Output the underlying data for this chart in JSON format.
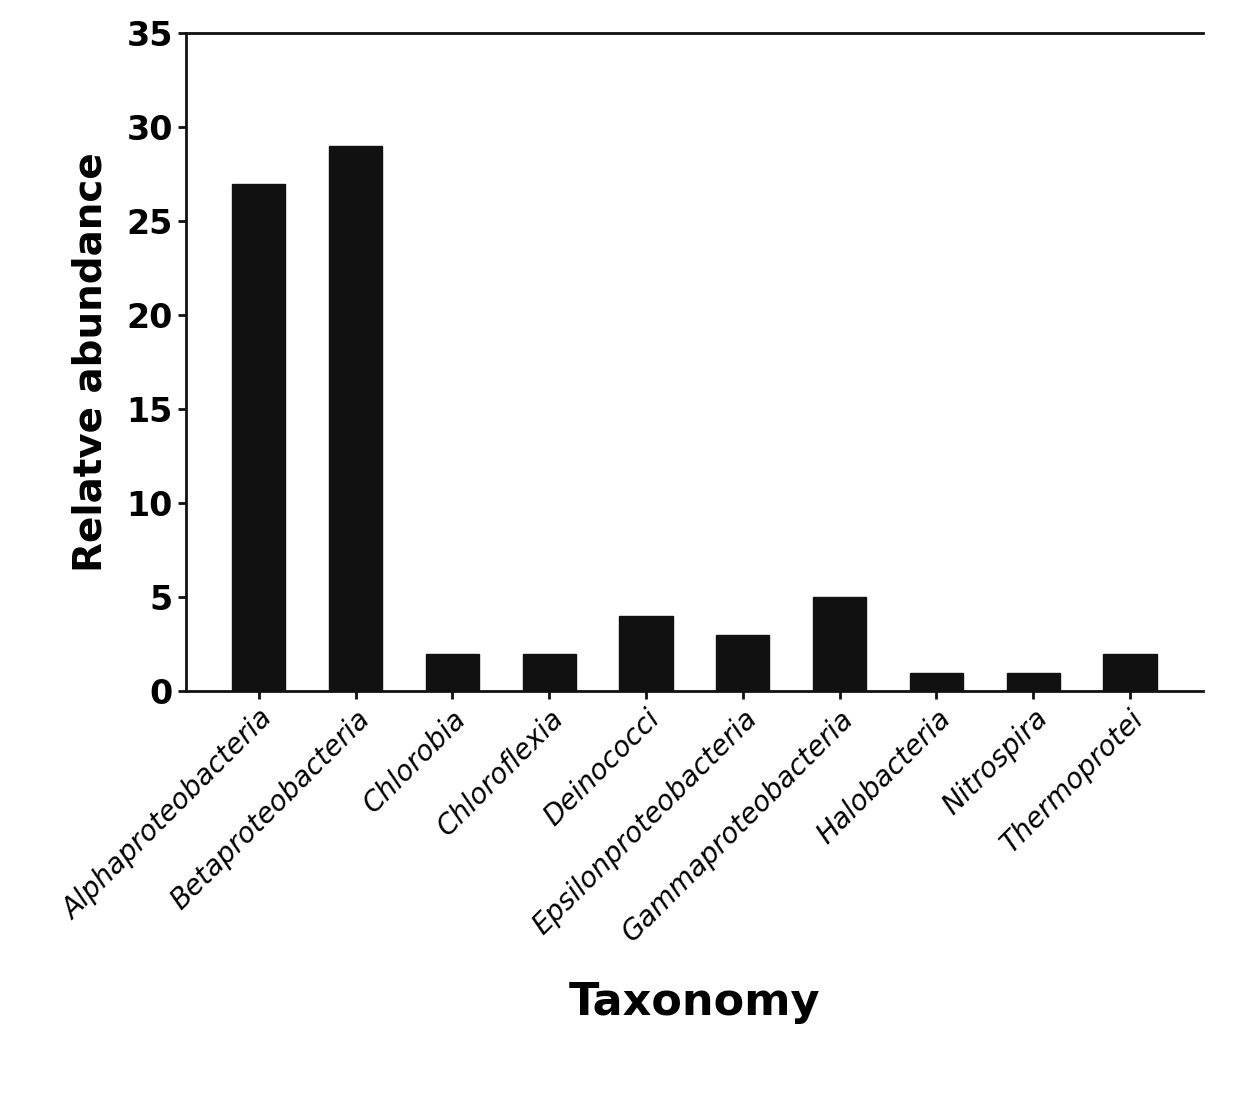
{
  "categories": [
    "Alphaproteobacteria",
    "Betaproteobacteria",
    "Chlorobia",
    "Chloroflexia",
    "Deinococci",
    "Epsilonproteobacteria",
    "Gammaproteobacteria",
    "Halobacteria",
    "Nitrospira",
    "Thermoprotei"
  ],
  "values": [
    27,
    29,
    2,
    2,
    4,
    3,
    5,
    1,
    1,
    2
  ],
  "bar_color": "#111111",
  "ylabel": "Relatve abundance",
  "xlabel": "Taxonomy",
  "ylim": [
    0,
    35
  ],
  "yticks": [
    0,
    5,
    10,
    15,
    20,
    25,
    30,
    35
  ],
  "background_color": "#ffffff",
  "ylabel_fontsize": 28,
  "xlabel_fontsize": 32,
  "ytick_fontsize": 24,
  "xtick_fontsize": 20,
  "bar_width": 0.55
}
